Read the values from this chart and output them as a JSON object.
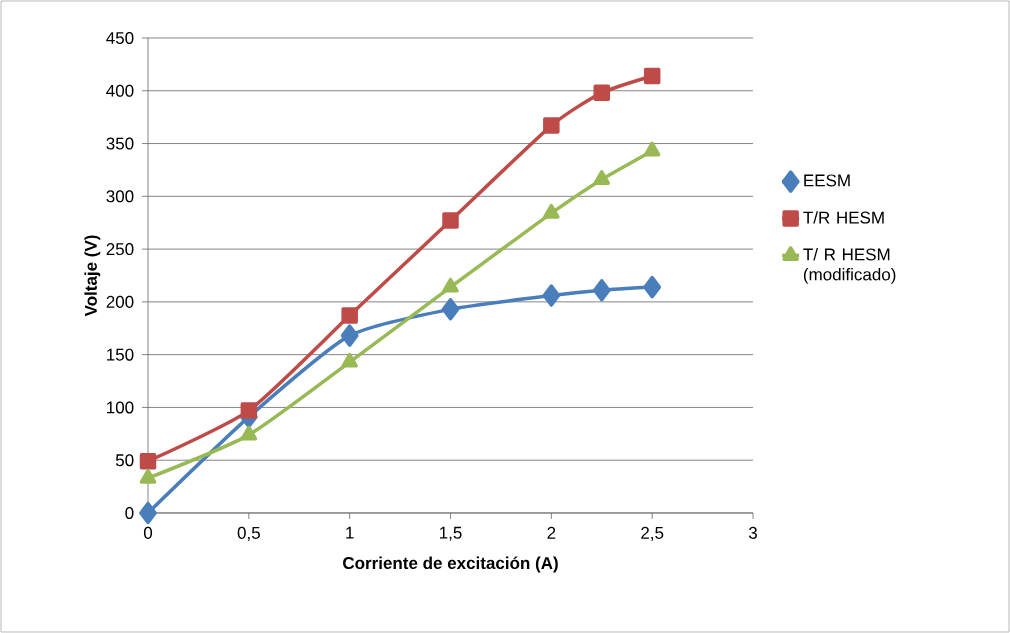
{
  "chart_data": {
    "type": "line",
    "xlabel": "Corriente de excitación (A)",
    "ylabel": "Voltaje (V)",
    "x": [
      0,
      0.5,
      1,
      1.5,
      2,
      2.25,
      2.5
    ],
    "series": [
      {
        "name": "EESM",
        "color": "#4a7ebb",
        "marker": "diamond",
        "values": [
          0,
          91,
          168,
          193,
          206,
          211,
          214
        ]
      },
      {
        "name": "T/R HESM",
        "color": "#be4b48",
        "marker": "square",
        "values": [
          49,
          97,
          187,
          277,
          367,
          398,
          414
        ]
      },
      {
        "name": "T/ R HESM (modificado)",
        "color": "#98b954",
        "marker": "triangle",
        "values": [
          33,
          74,
          143,
          214,
          284,
          316,
          343
        ]
      }
    ],
    "xlim": [
      0,
      3
    ],
    "ylim": [
      0,
      450
    ],
    "xticks": [
      0,
      {
        "value": 0.5,
        "label": "0,5"
      },
      1,
      {
        "value": 1.5,
        "label": "1,5"
      },
      2,
      {
        "value": 2.5,
        "label": "2,5"
      },
      3
    ],
    "yticks": [
      0,
      50,
      100,
      150,
      200,
      250,
      300,
      350,
      400,
      450
    ],
    "grid": "y",
    "legend": "right",
    "line_style": "solid"
  }
}
